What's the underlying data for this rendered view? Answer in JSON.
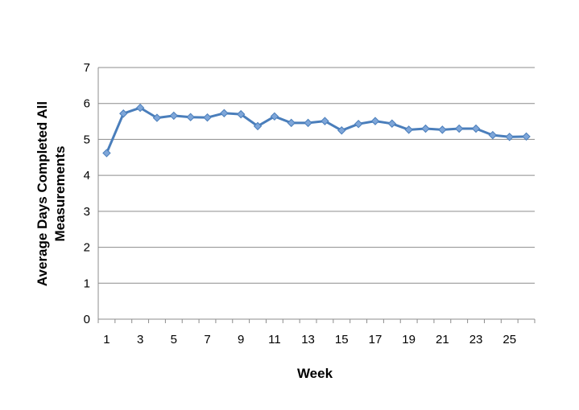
{
  "chart_data": {
    "type": "line",
    "title": "",
    "xlabel": "Week",
    "ylabel_lines": [
      "Average Days Completed All",
      "Measurements"
    ],
    "x": [
      1,
      2,
      3,
      4,
      5,
      6,
      7,
      8,
      9,
      10,
      11,
      12,
      13,
      14,
      15,
      16,
      17,
      18,
      19,
      20,
      21,
      22,
      23,
      24,
      25,
      26
    ],
    "x_tick_labels": [
      "1",
      "3",
      "5",
      "7",
      "9",
      "11",
      "13",
      "15",
      "17",
      "19",
      "21",
      "23",
      "25"
    ],
    "ylim": [
      0,
      7
    ],
    "y_ticks": [
      0,
      1,
      2,
      3,
      4,
      5,
      6,
      7
    ],
    "grid": "horizontal",
    "legend": "none",
    "series": [
      {
        "values": [
          4.62,
          5.72,
          5.88,
          5.6,
          5.66,
          5.62,
          5.61,
          5.73,
          5.7,
          5.37,
          5.64,
          5.46,
          5.46,
          5.51,
          5.25,
          5.43,
          5.51,
          5.44,
          5.27,
          5.3,
          5.27,
          5.3,
          5.3,
          5.12,
          5.07,
          5.08
        ],
        "color": "#4a7ebb",
        "marker_color": "#7ea6d9"
      }
    ]
  }
}
